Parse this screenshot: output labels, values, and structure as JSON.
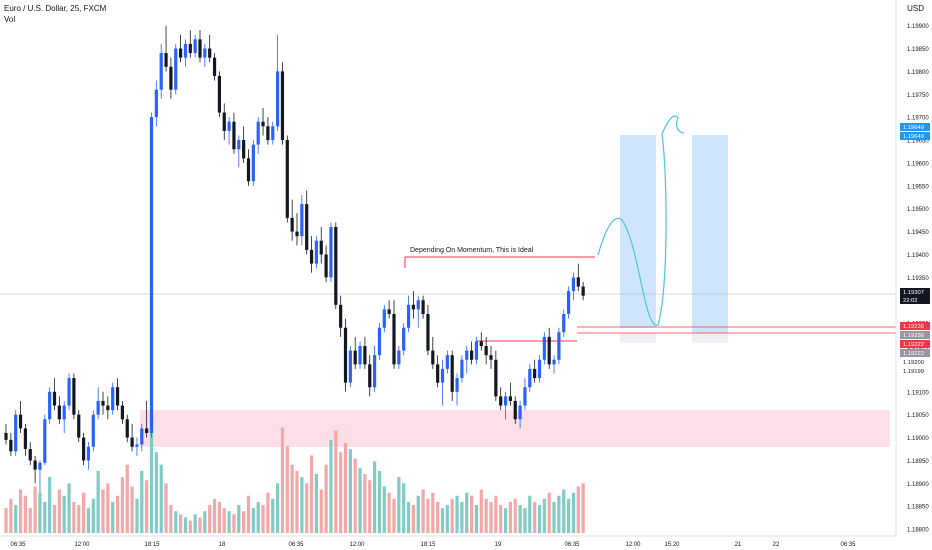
{
  "header": {
    "symbol": "Euro / U.S. Dollar, 25, FXCM",
    "volume_label": "Vol",
    "currency": "USD"
  },
  "colors": {
    "up": "#2962ff",
    "down": "#131722",
    "vol_up": "#80cbc4",
    "vol_down": "#f4a7a7",
    "zone_pink": "#fde0e7",
    "zone_blue": "#cfe5fb",
    "annot_red": "#f23645",
    "sketch": "#4fc3d9",
    "price_bg": "#131722",
    "highlight_blue": "#2196f3"
  },
  "annotation": {
    "text": "Depending On Momentum, This is Ideal"
  },
  "price_labels": [
    {
      "value": "1.19649",
      "style": "blue"
    },
    {
      "value": "1.19649",
      "style": "blue"
    },
    {
      "value": "1.19307",
      "style": "dark"
    },
    {
      "value": "22:02",
      "style": "dark"
    },
    {
      "value": "1.19236",
      "style": "red"
    },
    {
      "value": "1.19236",
      "style": "grey"
    },
    {
      "value": "1.19222",
      "style": "red"
    },
    {
      "value": "1.19222",
      "style": "grey"
    },
    {
      "value": "1.19200",
      "style": "plain"
    },
    {
      "value": "1.19199",
      "style": "plain"
    }
  ],
  "chart_data": {
    "type": "candlestick",
    "y_ticks": [
      "1.19900",
      "1.19850",
      "1.19800",
      "1.19750",
      "1.19700",
      "1.19650",
      "1.19600",
      "1.19550",
      "1.19500",
      "1.19450",
      "1.19400",
      "1.19350",
      "1.19300",
      "1.19250",
      "1.19200",
      "1.19150",
      "1.19100",
      "1.19050",
      "1.19000",
      "1.18950",
      "1.18900",
      "1.18850",
      "1.18800"
    ],
    "ylim": [
      1.18785,
      1.19945
    ],
    "x_ticks": [
      "06:35",
      "12:00",
      "18:15",
      "18",
      "06:35",
      "12:00",
      "18:15",
      "19",
      "06:35",
      "12:00",
      "15:20",
      "21",
      "22",
      "06:35"
    ],
    "ohlc": [
      [
        1.1901,
        1.1903,
        1.18985,
        1.18995
      ],
      [
        1.18995,
        1.1901,
        1.1896,
        1.1897
      ],
      [
        1.1897,
        1.1906,
        1.1896,
        1.1905
      ],
      [
        1.1905,
        1.1908,
        1.1901,
        1.1902
      ],
      [
        1.1902,
        1.1903,
        1.1896,
        1.18975
      ],
      [
        1.18975,
        1.1899,
        1.1894,
        1.1895
      ],
      [
        1.1895,
        1.1896,
        1.189,
        1.1893
      ],
      [
        1.1893,
        1.1895,
        1.1888,
        1.18945
      ],
      [
        1.18945,
        1.1905,
        1.1894,
        1.1904
      ],
      [
        1.1904,
        1.1911,
        1.1903,
        1.191
      ],
      [
        1.191,
        1.1913,
        1.1906,
        1.1907
      ],
      [
        1.1907,
        1.1909,
        1.1903,
        1.1904
      ],
      [
        1.1904,
        1.1908,
        1.1901,
        1.1907
      ],
      [
        1.1907,
        1.1914,
        1.1906,
        1.1913
      ],
      [
        1.1913,
        1.1914,
        1.1904,
        1.1905
      ],
      [
        1.1905,
        1.1906,
        1.1899,
        1.19
      ],
      [
        1.19,
        1.1901,
        1.1894,
        1.1895
      ],
      [
        1.1895,
        1.1899,
        1.1893,
        1.1898
      ],
      [
        1.1898,
        1.1906,
        1.1897,
        1.1905
      ],
      [
        1.1905,
        1.1911,
        1.1904,
        1.1908
      ],
      [
        1.1908,
        1.191,
        1.1905,
        1.1907
      ],
      [
        1.1907,
        1.1909,
        1.1904,
        1.1906
      ],
      [
        1.1906,
        1.1912,
        1.1905,
        1.1911
      ],
      [
        1.1911,
        1.1913,
        1.1906,
        1.1907
      ],
      [
        1.1907,
        1.1908,
        1.1903,
        1.1904
      ],
      [
        1.1904,
        1.1905,
        1.1899,
        1.19
      ],
      [
        1.19,
        1.1903,
        1.1897,
        1.1898
      ],
      [
        1.1898,
        1.19,
        1.1896,
        1.18985
      ],
      [
        1.18985,
        1.1903,
        1.1897,
        1.1902
      ],
      [
        1.1902,
        1.1908,
        1.19,
        1.1901
      ],
      [
        1.1901,
        1.1971,
        1.19,
        1.197
      ],
      [
        1.197,
        1.1978,
        1.1968,
        1.1976
      ],
      [
        1.1976,
        1.1986,
        1.1974,
        1.1984
      ],
      [
        1.1984,
        1.199,
        1.198,
        1.1981
      ],
      [
        1.1981,
        1.1983,
        1.1974,
        1.1976
      ],
      [
        1.1976,
        1.1986,
        1.1975,
        1.1985
      ],
      [
        1.1985,
        1.1988,
        1.1982,
        1.1983
      ],
      [
        1.1983,
        1.1987,
        1.1981,
        1.1986
      ],
      [
        1.1986,
        1.1989,
        1.1983,
        1.1984
      ],
      [
        1.1984,
        1.1988,
        1.1983,
        1.1987
      ],
      [
        1.1987,
        1.1989,
        1.1982,
        1.1983
      ],
      [
        1.1983,
        1.1986,
        1.1981,
        1.1985
      ],
      [
        1.1985,
        1.1988,
        1.1982,
        1.1983
      ],
      [
        1.1983,
        1.1984,
        1.1978,
        1.1979
      ],
      [
        1.1979,
        1.198,
        1.197,
        1.1971
      ],
      [
        1.1971,
        1.1973,
        1.1965,
        1.1967
      ],
      [
        1.1967,
        1.197,
        1.1964,
        1.1969
      ],
      [
        1.1969,
        1.1971,
        1.1962,
        1.1963
      ],
      [
        1.1963,
        1.1966,
        1.1959,
        1.1965
      ],
      [
        1.1965,
        1.1968,
        1.196,
        1.1961
      ],
      [
        1.1961,
        1.1963,
        1.1955,
        1.1956
      ],
      [
        1.1956,
        1.1965,
        1.1955,
        1.1964
      ],
      [
        1.1964,
        1.197,
        1.1962,
        1.1969
      ],
      [
        1.1969,
        1.1972,
        1.1966,
        1.1968
      ],
      [
        1.1968,
        1.197,
        1.1964,
        1.1965
      ],
      [
        1.1965,
        1.1969,
        1.1964,
        1.1968
      ],
      [
        1.1968,
        1.1988,
        1.1967,
        1.198
      ],
      [
        1.198,
        1.1982,
        1.1964,
        1.1965
      ],
      [
        1.1965,
        1.1966,
        1.1947,
        1.1948
      ],
      [
        1.1948,
        1.1952,
        1.1943,
        1.1945
      ],
      [
        1.1945,
        1.1949,
        1.1942,
        1.1944
      ],
      [
        1.1944,
        1.1953,
        1.1942,
        1.1951
      ],
      [
        1.1951,
        1.1954,
        1.194,
        1.1941
      ],
      [
        1.1941,
        1.1944,
        1.1936,
        1.1938
      ],
      [
        1.1938,
        1.1944,
        1.1937,
        1.1943
      ],
      [
        1.1943,
        1.1946,
        1.1938,
        1.194
      ],
      [
        1.194,
        1.1942,
        1.1934,
        1.1935
      ],
      [
        1.1935,
        1.1947,
        1.1934,
        1.1946
      ],
      [
        1.1946,
        1.1947,
        1.1928,
        1.1929
      ],
      [
        1.1929,
        1.1931,
        1.1922,
        1.1924
      ],
      [
        1.1924,
        1.1926,
        1.191,
        1.1912
      ],
      [
        1.1912,
        1.192,
        1.1911,
        1.1919
      ],
      [
        1.1919,
        1.1922,
        1.1915,
        1.1916
      ],
      [
        1.1916,
        1.1921,
        1.1915,
        1.192
      ],
      [
        1.192,
        1.1922,
        1.1915,
        1.1916
      ],
      [
        1.1916,
        1.1918,
        1.1909,
        1.1911
      ],
      [
        1.1911,
        1.192,
        1.191,
        1.1918
      ],
      [
        1.1918,
        1.1925,
        1.1917,
        1.1924
      ],
      [
        1.1924,
        1.1929,
        1.1923,
        1.1928
      ],
      [
        1.1928,
        1.193,
        1.1926,
        1.1927
      ],
      [
        1.1927,
        1.193,
        1.1915,
        1.1916
      ],
      [
        1.1916,
        1.192,
        1.1915,
        1.1919
      ],
      [
        1.1919,
        1.1925,
        1.1918,
        1.1924
      ],
      [
        1.1924,
        1.1931,
        1.1923,
        1.1929
      ],
      [
        1.1929,
        1.1932,
        1.1926,
        1.1928
      ],
      [
        1.1928,
        1.1931,
        1.1924,
        1.193
      ],
      [
        1.193,
        1.1931,
        1.1926,
        1.1927
      ],
      [
        1.1927,
        1.1929,
        1.1918,
        1.1919
      ],
      [
        1.1919,
        1.1922,
        1.1915,
        1.1916
      ],
      [
        1.1916,
        1.1918,
        1.1911,
        1.1912
      ],
      [
        1.1912,
        1.1917,
        1.1907,
        1.1915
      ],
      [
        1.1915,
        1.1919,
        1.1914,
        1.1918
      ],
      [
        1.1918,
        1.1919,
        1.1908,
        1.191
      ],
      [
        1.191,
        1.1914,
        1.1907,
        1.1913
      ],
      [
        1.1913,
        1.1918,
        1.1912,
        1.1917
      ],
      [
        1.1917,
        1.192,
        1.1914,
        1.1919
      ],
      [
        1.1919,
        1.1921,
        1.1916,
        1.1917
      ],
      [
        1.1917,
        1.1922,
        1.1916,
        1.1921
      ],
      [
        1.1921,
        1.1923,
        1.1919,
        1.192
      ],
      [
        1.192,
        1.1922,
        1.1916,
        1.1918
      ],
      [
        1.1918,
        1.192,
        1.1915,
        1.1917
      ],
      [
        1.1917,
        1.1919,
        1.1908,
        1.1909
      ],
      [
        1.1909,
        1.1911,
        1.1906,
        1.1907
      ],
      [
        1.1907,
        1.191,
        1.1904,
        1.1909
      ],
      [
        1.1909,
        1.1912,
        1.1907,
        1.1908
      ],
      [
        1.1908,
        1.1909,
        1.1903,
        1.1904
      ],
      [
        1.1904,
        1.1908,
        1.1902,
        1.1907
      ],
      [
        1.1907,
        1.1913,
        1.1906,
        1.1911
      ],
      [
        1.1911,
        1.1916,
        1.191,
        1.1915
      ],
      [
        1.1915,
        1.1917,
        1.1912,
        1.1913
      ],
      [
        1.1913,
        1.1918,
        1.1912,
        1.1917
      ],
      [
        1.1917,
        1.1923,
        1.1916,
        1.1922
      ],
      [
        1.1922,
        1.1924,
        1.1915,
        1.1916
      ],
      [
        1.1916,
        1.1918,
        1.1914,
        1.1917
      ],
      [
        1.1917,
        1.1924,
        1.1916,
        1.1923
      ],
      [
        1.1923,
        1.1928,
        1.1922,
        1.1927
      ],
      [
        1.1927,
        1.1933,
        1.1926,
        1.1932
      ],
      [
        1.1932,
        1.1936,
        1.193,
        1.1935
      ],
      [
        1.1935,
        1.1938,
        1.1932,
        1.1933
      ],
      [
        1.1933,
        1.1934,
        1.193,
        1.1931
      ]
    ],
    "volume": [
      8,
      11,
      9,
      14,
      12,
      8,
      15,
      13,
      10,
      18,
      9,
      14,
      12,
      16,
      10,
      9,
      13,
      8,
      11,
      20,
      14,
      16,
      10,
      12,
      18,
      22,
      15,
      11,
      20,
      17,
      38,
      26,
      22,
      16,
      9,
      7,
      6,
      5,
      4,
      6,
      5,
      7,
      9,
      11,
      10,
      8,
      7,
      6,
      9,
      7,
      12,
      8,
      10,
      9,
      13,
      11,
      16,
      34,
      28,
      22,
      20,
      18,
      16,
      25,
      19,
      14,
      22,
      30,
      33,
      26,
      29,
      27,
      24,
      21,
      19,
      17,
      23,
      20,
      15,
      13,
      11,
      18,
      16,
      10,
      9,
      12,
      14,
      11,
      13,
      10,
      8,
      9,
      11,
      12,
      10,
      13,
      12,
      9,
      14,
      11,
      10,
      12,
      9,
      8,
      10,
      11,
      9,
      8,
      12,
      10,
      9,
      11,
      13,
      10,
      12,
      14,
      11,
      13,
      15,
      16
    ]
  }
}
